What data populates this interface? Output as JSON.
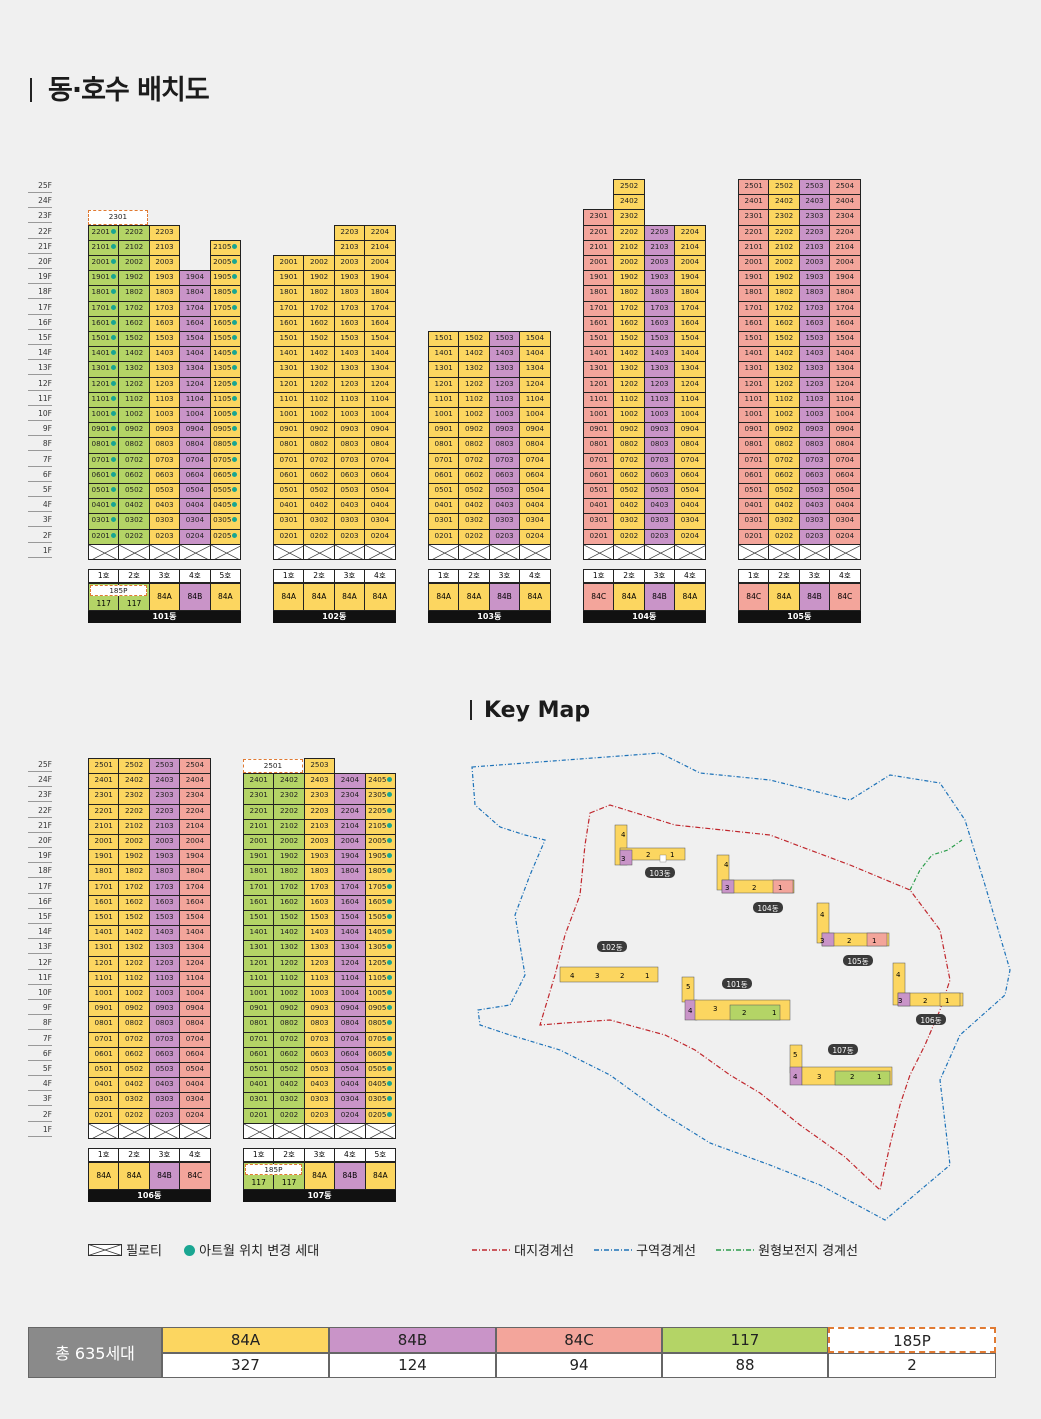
{
  "title": "동·호수 배치도",
  "keymap_title": "Key Map",
  "colors": {
    "84A": "#fcd660",
    "84B": "#c994c8",
    "84C": "#f3a59b",
    "117": "#b4d466",
    "185P": "#ffffff",
    "atwall": "#1aa692"
  },
  "floor_labels": [
    "25F",
    "24F",
    "23F",
    "22F",
    "21F",
    "20F",
    "19F",
    "18F",
    "17F",
    "16F",
    "15F",
    "14F",
    "13F",
    "12F",
    "11F",
    "10F",
    "9F",
    "8F",
    "7F",
    "6F",
    "5F",
    "4F",
    "3F",
    "2F",
    "1F"
  ],
  "buildings": [
    {
      "name": "101동",
      "ho": [
        "1호",
        "2호",
        "3호",
        "4호",
        "5호"
      ],
      "types": [
        "117",
        "117",
        "84A",
        "84B",
        "84A"
      ],
      "type_labels": [
        "117",
        "117",
        "84A",
        "84B",
        "84A"
      ],
      "p185_label": "185P",
      "col_classes": [
        "g",
        "g",
        "y",
        "p",
        "y"
      ],
      "col_ranges": [
        [
          2,
          22
        ],
        [
          2,
          22
        ],
        [
          2,
          22
        ],
        [
          2,
          19
        ],
        [
          2,
          21
        ]
      ],
      "dots": {
        "0": [
          2,
          22
        ],
        "4": [
          2,
          21
        ]
      },
      "top_185": {
        "floor": 23,
        "label": "2301",
        "span": 2
      },
      "row": 1
    },
    {
      "name": "102동",
      "ho": [
        "1호",
        "2호",
        "3호",
        "4호"
      ],
      "types": [
        "84A",
        "84A",
        "84A",
        "84A"
      ],
      "type_labels": [
        "84A",
        "84A",
        "84A",
        "84A"
      ],
      "col_classes": [
        "y",
        "y",
        "y",
        "y"
      ],
      "col_ranges": [
        [
          2,
          20
        ],
        [
          2,
          20
        ],
        [
          2,
          22
        ],
        [
          2,
          22
        ]
      ],
      "row": 1
    },
    {
      "name": "103동",
      "ho": [
        "1호",
        "2호",
        "3호",
        "4호"
      ],
      "types": [
        "84A",
        "84A",
        "84B",
        "84A"
      ],
      "type_labels": [
        "84A",
        "84A",
        "84B",
        "84A"
      ],
      "col_classes": [
        "y",
        "y",
        "p",
        "y"
      ],
      "col_ranges": [
        [
          2,
          15
        ],
        [
          2,
          15
        ],
        [
          2,
          15
        ],
        [
          2,
          15
        ]
      ],
      "row": 1
    },
    {
      "name": "104동",
      "ho": [
        "1호",
        "2호",
        "3호",
        "4호"
      ],
      "types": [
        "84C",
        "84A",
        "84B",
        "84A"
      ],
      "type_labels": [
        "84C",
        "84A",
        "84B",
        "84A"
      ],
      "col_classes": [
        "r",
        "y",
        "p",
        "y"
      ],
      "col_ranges": [
        [
          2,
          23
        ],
        [
          2,
          25
        ],
        [
          2,
          22
        ],
        [
          2,
          22
        ]
      ],
      "row": 1
    },
    {
      "name": "105동",
      "ho": [
        "1호",
        "2호",
        "3호",
        "4호"
      ],
      "types": [
        "84C",
        "84A",
        "84B",
        "84C"
      ],
      "type_labels": [
        "84C",
        "84A",
        "84B",
        "84C"
      ],
      "col_classes": [
        "r",
        "y",
        "p",
        "r"
      ],
      "col_ranges": [
        [
          2,
          25
        ],
        [
          2,
          25
        ],
        [
          2,
          25
        ],
        [
          2,
          25
        ]
      ],
      "row": 1
    },
    {
      "name": "106동",
      "ho": [
        "1호",
        "2호",
        "3호",
        "4호"
      ],
      "types": [
        "84A",
        "84A",
        "84B",
        "84C"
      ],
      "type_labels": [
        "84A",
        "84A",
        "84B",
        "84C"
      ],
      "col_classes": [
        "y",
        "y",
        "p",
        "r"
      ],
      "col_ranges": [
        [
          2,
          25
        ],
        [
          2,
          25
        ],
        [
          2,
          25
        ],
        [
          2,
          25
        ]
      ],
      "row": 2
    },
    {
      "name": "107동",
      "ho": [
        "1호",
        "2호",
        "3호",
        "4호",
        "5호"
      ],
      "types": [
        "117",
        "117",
        "84A",
        "84B",
        "84A"
      ],
      "type_labels": [
        "117",
        "117",
        "84A",
        "84B",
        "84A"
      ],
      "p185_label": "185P",
      "col_classes": [
        "g",
        "g",
        "y",
        "p",
        "y"
      ],
      "col_ranges": [
        [
          2,
          24
        ],
        [
          2,
          24
        ],
        [
          2,
          25
        ],
        [
          2,
          24
        ],
        [
          2,
          24
        ]
      ],
      "dots": {
        "4": [
          2,
          24
        ]
      },
      "top_185": {
        "floor": 25,
        "label": "2501",
        "span": 2
      },
      "row": 2
    }
  ],
  "legend": {
    "piloti": "필로티",
    "atwall": "아트월 위치 변경 세대",
    "site_boundary": "대지경계선",
    "zone_boundary": "구역경계선",
    "preserve_boundary": "원형보전지 경계선"
  },
  "keymap": {
    "buildings": [
      "101동",
      "102동",
      "103동",
      "104동",
      "105동",
      "106동",
      "107동"
    ]
  },
  "total": {
    "label": "총 635세대",
    "types": [
      {
        "name": "84A",
        "count": "327"
      },
      {
        "name": "84B",
        "count": "124"
      },
      {
        "name": "84C",
        "count": "94"
      },
      {
        "name": "117",
        "count": "88"
      },
      {
        "name": "185P",
        "count": "2"
      }
    ]
  }
}
